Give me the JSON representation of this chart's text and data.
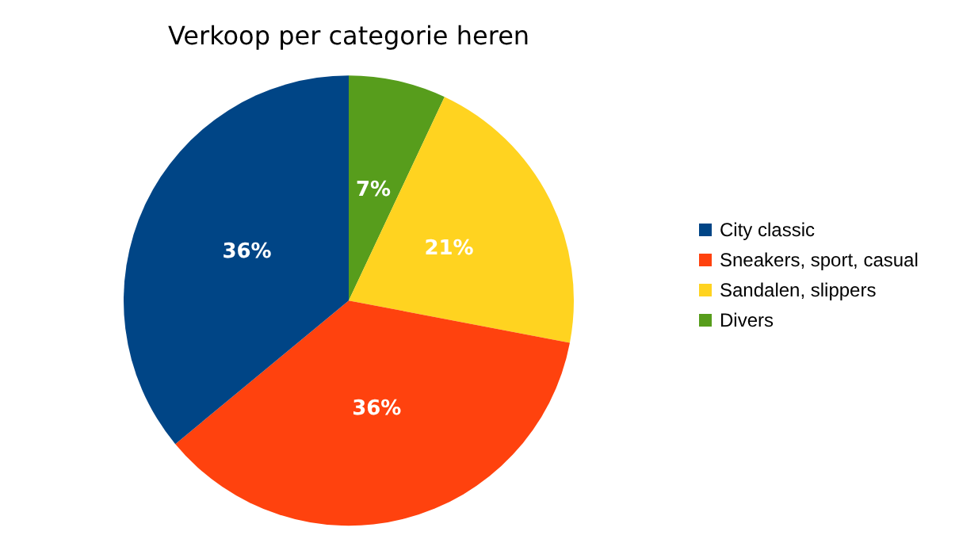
{
  "chart_data": {
    "type": "pie",
    "title": "Verkoop per categorie heren",
    "categories": [
      "City classic",
      "Sneakers, sport, casual",
      "Sandalen, slippers",
      "Divers"
    ],
    "values": [
      36,
      36,
      21,
      7
    ],
    "colors": [
      "#004586",
      "#ff420e",
      "#ffd320",
      "#579d1c"
    ],
    "value_labels": [
      "36%",
      "36%",
      "21%",
      "7%"
    ],
    "legend": "right"
  }
}
